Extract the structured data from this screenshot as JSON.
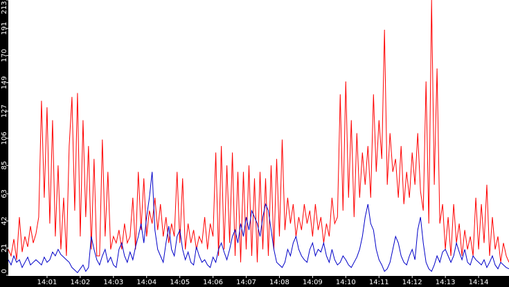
{
  "chart_data": {
    "type": "line",
    "categories": [
      null,
      null,
      null,
      null,
      null,
      null,
      null,
      null,
      null,
      null,
      null,
      null,
      null,
      null,
      "14:01",
      null,
      null,
      null,
      null,
      null,
      null,
      null,
      null,
      null,
      null,
      null,
      "14:02",
      null,
      null,
      null,
      null,
      null,
      null,
      null,
      null,
      null,
      null,
      null,
      "14:03",
      null,
      null,
      null,
      null,
      null,
      null,
      null,
      null,
      null,
      null,
      null,
      "14:04",
      null,
      null,
      null,
      null,
      null,
      null,
      null,
      null,
      null,
      null,
      null,
      "14:05",
      null,
      null,
      null,
      null,
      null,
      null,
      null,
      null,
      null,
      null,
      null,
      "14:06",
      null,
      null,
      null,
      null,
      null,
      null,
      null,
      null,
      null,
      null,
      null,
      "14:07",
      null,
      null,
      null,
      null,
      null,
      null,
      null,
      null,
      null,
      null,
      null,
      "14:08",
      null,
      null,
      null,
      null,
      null,
      null,
      null,
      null,
      null,
      null,
      null,
      "14:09",
      null,
      null,
      null,
      null,
      null,
      null,
      null,
      null,
      null,
      null,
      null,
      "14:10",
      null,
      null,
      null,
      null,
      null,
      null,
      null,
      null,
      null,
      null,
      null,
      "14:11",
      null,
      null,
      null,
      null,
      null,
      null,
      null,
      null,
      null,
      null,
      null,
      "14:12",
      null,
      null,
      null,
      null,
      null,
      null,
      null,
      null,
      null,
      null,
      null,
      "14:13",
      null,
      null,
      null,
      null,
      null,
      null,
      null,
      null,
      null,
      null,
      null,
      "14:14",
      null,
      null,
      null,
      null,
      null,
      null,
      null,
      null,
      null,
      null,
      null
    ],
    "series": [
      {
        "color": "#ff0000",
        "values": [
          20,
          15,
          28,
          12,
          45,
          18,
          30,
          22,
          38,
          25,
          32,
          45,
          135,
          60,
          130,
          40,
          120,
          30,
          85,
          20,
          60,
          15,
          100,
          138,
          50,
          141,
          30,
          120,
          45,
          100,
          20,
          90,
          15,
          15,
          105,
          30,
          80,
          20,
          30,
          25,
          35,
          20,
          40,
          25,
          30,
          60,
          20,
          80,
          35,
          75,
          30,
          50,
          40,
          60,
          35,
          55,
          30,
          45,
          25,
          40,
          30,
          80,
          25,
          75,
          20,
          40,
          25,
          35,
          20,
          30,
          25,
          45,
          20,
          40,
          30,
          95,
          15,
          100,
          20,
          85,
          25,
          95,
          15,
          80,
          10,
          80,
          20,
          85,
          15,
          75,
          10,
          80,
          20,
          75,
          15,
          85,
          20,
          90,
          30,
          105,
          35,
          60,
          40,
          55,
          30,
          45,
          35,
          55,
          40,
          50,
          30,
          55,
          35,
          45,
          25,
          40,
          30,
          60,
          40,
          45,
          140,
          50,
          150,
          60,
          120,
          45,
          110,
          60,
          95,
          70,
          100,
          60,
          140,
          80,
          120,
          90,
          190,
          70,
          110,
          80,
          90,
          60,
          100,
          55,
          80,
          60,
          95,
          70,
          110,
          65,
          50,
          150,
          40,
          213,
          70,
          160,
          40,
          55,
          20,
          45,
          15,
          55,
          25,
          40,
          15,
          35,
          20,
          30,
          15,
          60,
          20,
          55,
          25,
          70,
          15,
          45,
          20,
          30,
          10,
          25,
          15,
          10
        ]
      },
      {
        "color": "#0000c8",
        "values": [
          12,
          8,
          15,
          10,
          12,
          6,
          10,
          14,
          8,
          10,
          12,
          10,
          8,
          14,
          10,
          12,
          18,
          15,
          20,
          16,
          14,
          12,
          10,
          6,
          4,
          2,
          5,
          8,
          3,
          6,
          30,
          20,
          12,
          8,
          15,
          20,
          10,
          14,
          8,
          6,
          20,
          25,
          15,
          10,
          18,
          12,
          22,
          30,
          40,
          25,
          45,
          60,
          80,
          35,
          20,
          15,
          10,
          25,
          38,
          20,
          15,
          30,
          35,
          20,
          12,
          18,
          10,
          8,
          22,
          15,
          10,
          12,
          8,
          6,
          14,
          10,
          20,
          25,
          18,
          12,
          20,
          30,
          35,
          25,
          40,
          30,
          45,
          35,
          50,
          45,
          40,
          30,
          45,
          55,
          50,
          35,
          20,
          10,
          8,
          6,
          10,
          20,
          15,
          25,
          30,
          20,
          15,
          12,
          10,
          20,
          25,
          15,
          20,
          18,
          25,
          15,
          10,
          20,
          12,
          8,
          10,
          15,
          12,
          8,
          6,
          10,
          14,
          20,
          30,
          45,
          55,
          40,
          35,
          20,
          12,
          8,
          3,
          5,
          10,
          20,
          30,
          25,
          15,
          10,
          8,
          15,
          20,
          12,
          35,
          45,
          25,
          10,
          5,
          3,
          8,
          15,
          10,
          18,
          20,
          15,
          10,
          15,
          25,
          18,
          12,
          20,
          10,
          8,
          15,
          12,
          10,
          8,
          12,
          6,
          10,
          15,
          8,
          5,
          10,
          8,
          6,
          5
        ]
      }
    ],
    "ylim": [
      0,
      213
    ],
    "yticks": [
      0,
      21,
      42,
      63,
      85,
      106,
      127,
      149,
      170,
      191,
      213
    ]
  }
}
